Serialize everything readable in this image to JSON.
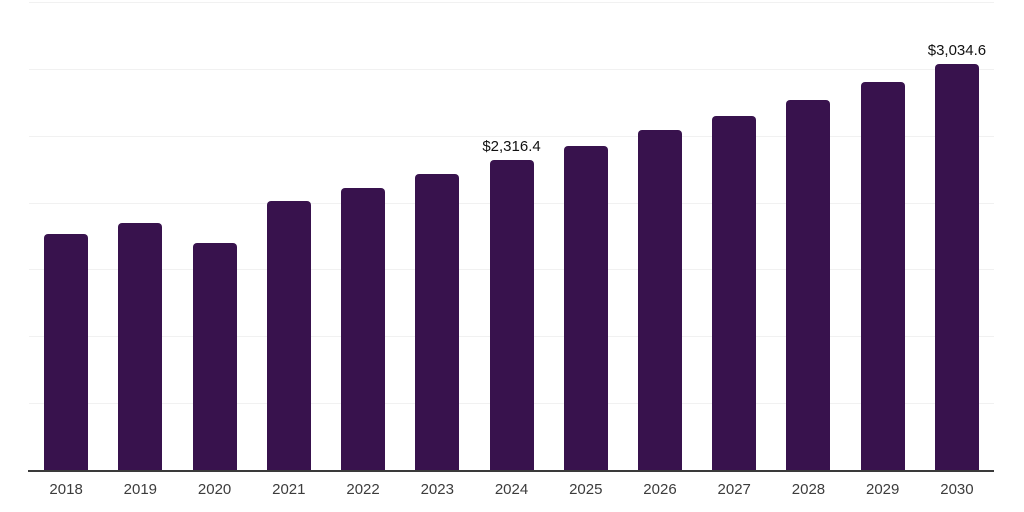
{
  "chart_data": {
    "type": "bar",
    "title": "",
    "xlabel": "",
    "ylabel": "",
    "categories": [
      "2018",
      "2019",
      "2020",
      "2021",
      "2022",
      "2023",
      "2024",
      "2025",
      "2026",
      "2027",
      "2028",
      "2029",
      "2030"
    ],
    "values": [
      1765,
      1846,
      1700,
      2015,
      2110,
      2213,
      2316.4,
      2420,
      2540,
      2650,
      2770,
      2900,
      3034.6
    ],
    "value_labels": [
      "",
      "",
      "",
      "",
      "",
      "",
      "$2,316.4",
      "",
      "",
      "",
      "",
      "",
      "$3,034.6"
    ],
    "ylim": [
      0,
      3500
    ],
    "gridline_step": 500,
    "grid": true,
    "legend": "none",
    "y_tick_labels_visible": false,
    "colors": {
      "bar": "#38124D",
      "gridline": "#f1f1f1",
      "axis_line": "#3a3a3a",
      "x_label_text": "#3c3c3c",
      "value_label_text": "#111111",
      "background": "#ffffff"
    }
  }
}
